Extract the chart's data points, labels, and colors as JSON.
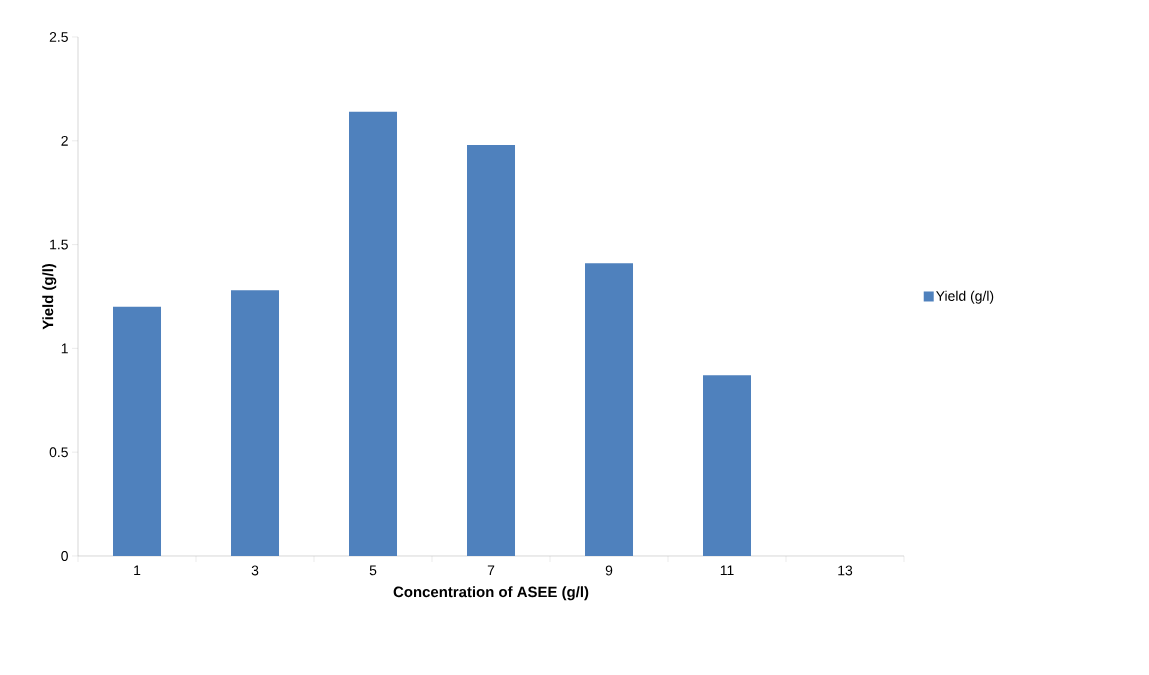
{
  "chart_data": {
    "type": "bar",
    "xlabel": "Concentration of ASEE (g/l)",
    "ylabel": "Yield (g/l)",
    "categories": [
      "1",
      "3",
      "5",
      "7",
      "9",
      "11",
      "13"
    ],
    "series": [
      {
        "name": "Yield (g/l)",
        "color": "#4f81bd",
        "values": [
          1.2,
          1.28,
          2.14,
          1.98,
          1.41,
          0.87,
          null
        ]
      }
    ],
    "ylim": [
      0,
      2.5
    ],
    "yticks": [
      0,
      0.5,
      1,
      1.5,
      2,
      2.5
    ],
    "grid": false,
    "legend": "right"
  }
}
